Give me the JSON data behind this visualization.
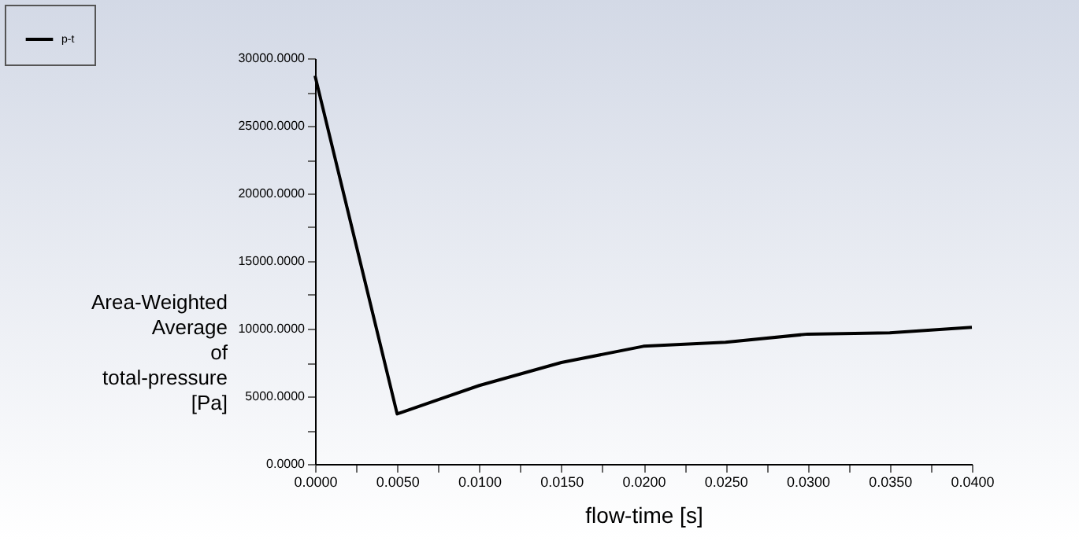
{
  "chart_data": {
    "type": "line",
    "xlabel": "flow-time [s]",
    "ylabel": "Area-Weighted Average of total-pressure [Pa]",
    "x": [
      0,
      0.005,
      0.01,
      0.015,
      0.02,
      0.025,
      0.03,
      0.035,
      0.04
    ],
    "series": [
      {
        "name": "p-t",
        "color": "#000000",
        "values": [
          28700,
          3700,
          5800,
          7500,
          8700,
          9000,
          9600,
          9700,
          10100
        ]
      }
    ],
    "xlim": [
      0,
      0.04
    ],
    "xticks": [
      {
        "value": 0,
        "label": "0.0000"
      },
      {
        "value": 0.0025,
        "label": null
      },
      {
        "value": 0.005,
        "label": "0.0050"
      },
      {
        "value": 0.0075,
        "label": null
      },
      {
        "value": 0.01,
        "label": "0.0100"
      },
      {
        "value": 0.0125,
        "label": null
      },
      {
        "value": 0.015,
        "label": "0.0150"
      },
      {
        "value": 0.0175,
        "label": null
      },
      {
        "value": 0.02,
        "label": "0.0200"
      },
      {
        "value": 0.0225,
        "label": null
      },
      {
        "value": 0.025,
        "label": "0.0250"
      },
      {
        "value": 0.0275,
        "label": null
      },
      {
        "value": 0.03,
        "label": "0.0300"
      },
      {
        "value": 0.0325,
        "label": null
      },
      {
        "value": 0.035,
        "label": "0.0350"
      },
      {
        "value": 0.0375,
        "label": null
      },
      {
        "value": 0.04,
        "label": "0.0400"
      }
    ],
    "ylim": [
      0,
      30000
    ],
    "yticks": [
      {
        "value": 0,
        "label": "0.0000"
      },
      {
        "value": 2500,
        "label": null
      },
      {
        "value": 5000,
        "label": "5000.0000"
      },
      {
        "value": 7500,
        "label": null
      },
      {
        "value": 10000,
        "label": "10000.0000"
      },
      {
        "value": 12500,
        "label": null
      },
      {
        "value": 15000,
        "label": "15000.0000"
      },
      {
        "value": 17500,
        "label": null
      },
      {
        "value": 20000,
        "label": "20000.0000"
      },
      {
        "value": 22500,
        "label": null
      },
      {
        "value": 25000,
        "label": "25000.0000"
      },
      {
        "value": 27500,
        "label": null
      },
      {
        "value": 30000,
        "label": "30000.0000"
      }
    ],
    "grid": false,
    "legend": "top left",
    "marker": "none",
    "line_style": "solid"
  }
}
